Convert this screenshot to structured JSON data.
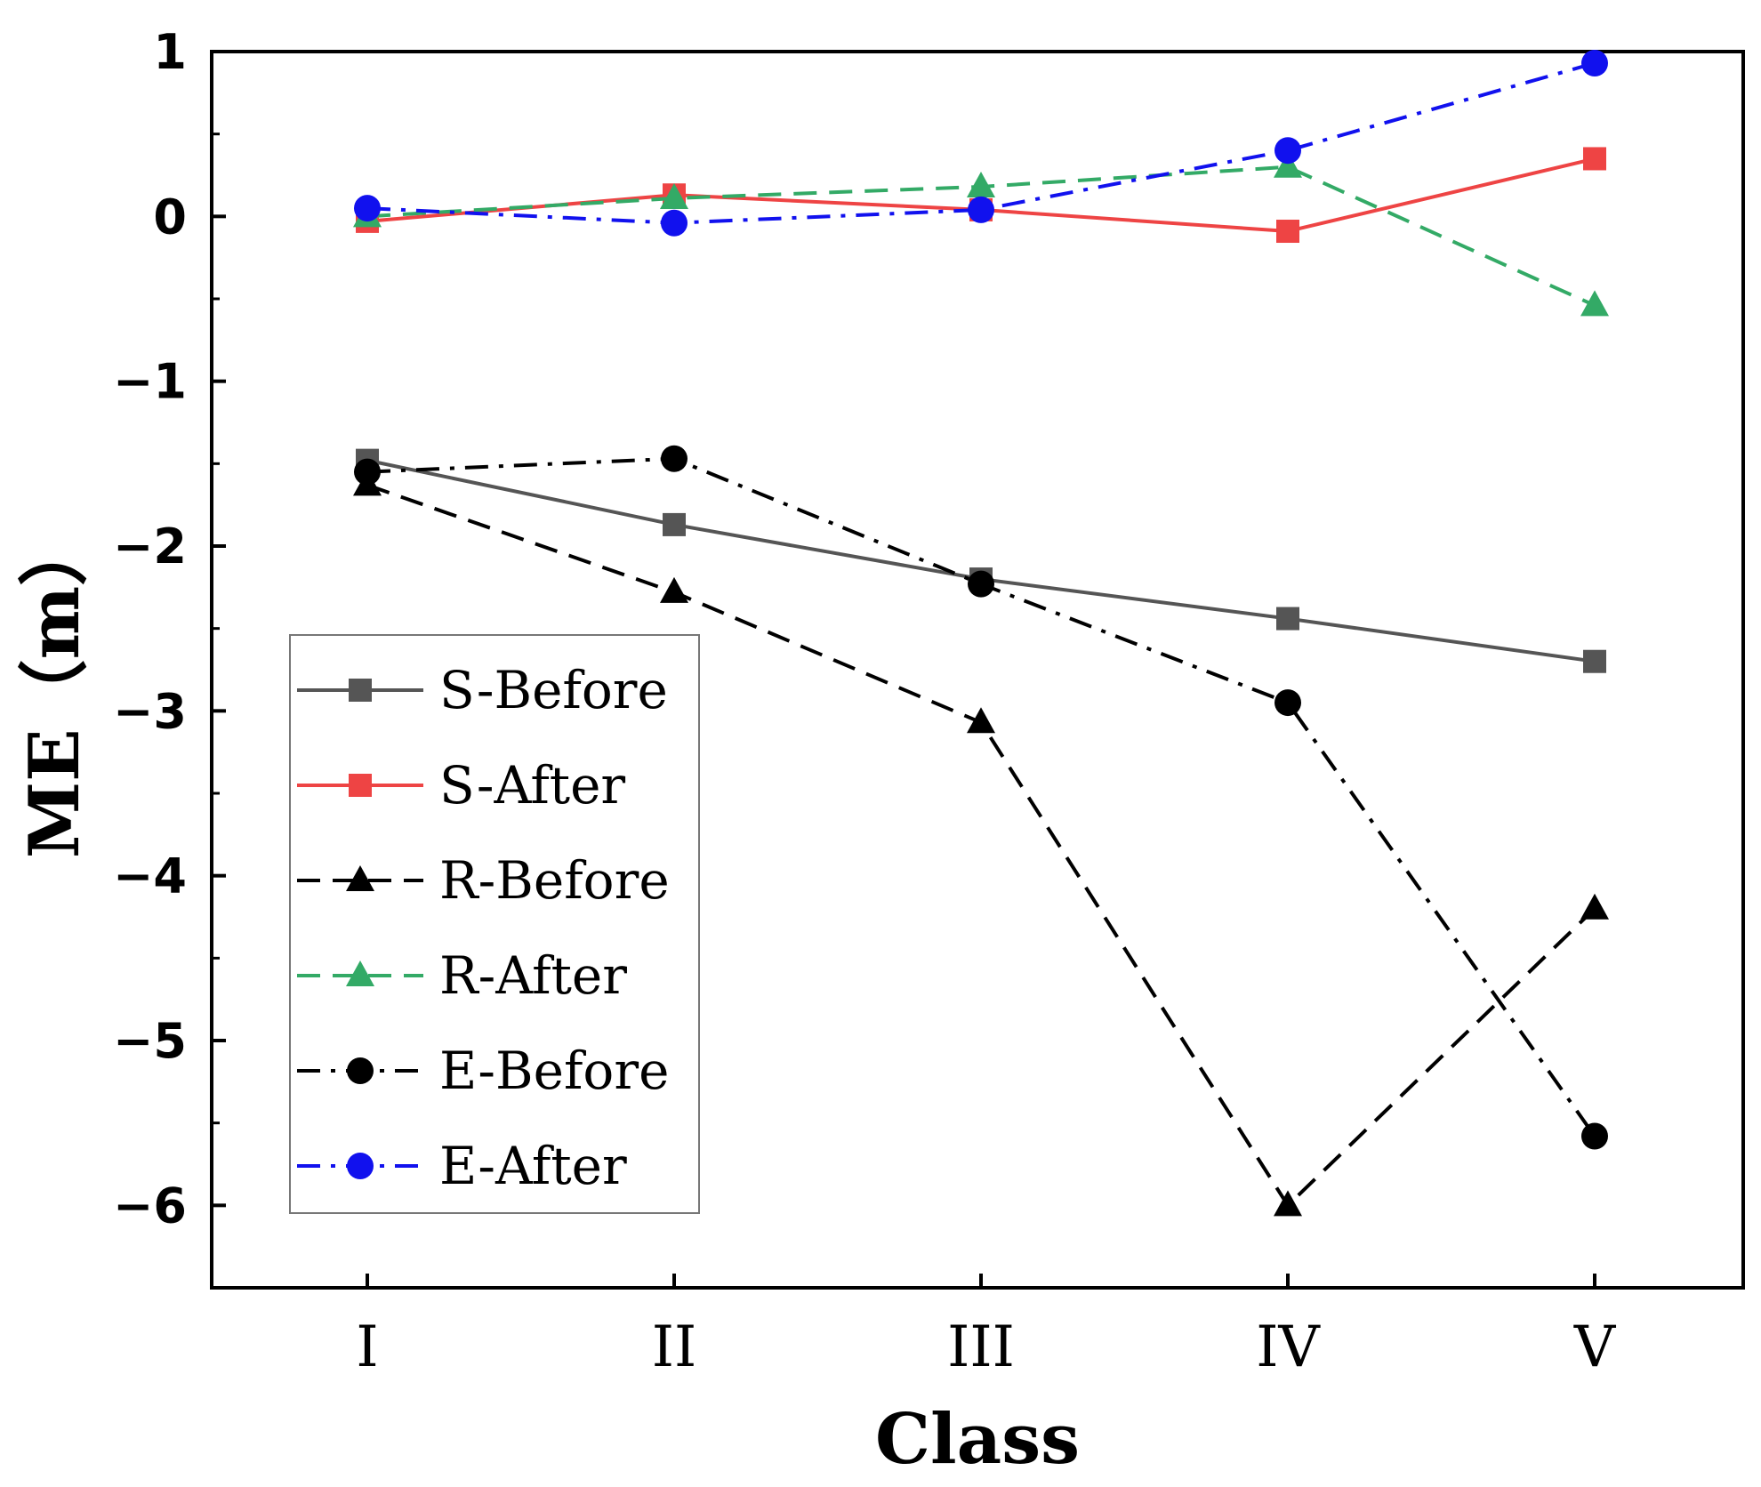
{
  "chart_data": {
    "type": "line",
    "title": "",
    "xlabel": "Class",
    "ylabel": "ME（m）",
    "categories": [
      "I",
      "II",
      "III",
      "IV",
      "V"
    ],
    "ylim": [
      -6.5,
      1
    ],
    "yticks": [
      1,
      0,
      -1,
      -2,
      -3,
      -4,
      -5,
      -6
    ],
    "ytick_labels": [
      "1",
      "0",
      "−1",
      "−2",
      "−3",
      "−4",
      "−5",
      "−6"
    ],
    "grid": false,
    "legend_position": "lower-left",
    "series": [
      {
        "name": "S-Before",
        "values": [
          -1.48,
          -1.87,
          -2.2,
          -2.44,
          -2.7
        ],
        "color": "#555555",
        "dash": "solid",
        "marker": "square"
      },
      {
        "name": "S-After",
        "values": [
          -0.03,
          0.13,
          0.04,
          -0.09,
          0.35
        ],
        "color": "#ee4444",
        "dash": "solid",
        "marker": "square"
      },
      {
        "name": "R-Before",
        "values": [
          -1.63,
          -2.28,
          -3.07,
          -6.0,
          -4.2
        ],
        "color": "#000000",
        "dash": "dash",
        "marker": "triangle"
      },
      {
        "name": "R-After",
        "values": [
          0.0,
          0.11,
          0.18,
          0.3,
          -0.54
        ],
        "color": "#33aa66",
        "dash": "dash",
        "marker": "triangle"
      },
      {
        "name": "E-Before",
        "values": [
          -1.55,
          -1.47,
          -2.23,
          -2.95,
          -5.58
        ],
        "color": "#000000",
        "dash": "dashdot",
        "marker": "circle"
      },
      {
        "name": "E-After",
        "values": [
          0.05,
          -0.04,
          0.04,
          0.4,
          0.93
        ],
        "color": "#1111ee",
        "dash": "dashdot",
        "marker": "circle"
      }
    ]
  }
}
